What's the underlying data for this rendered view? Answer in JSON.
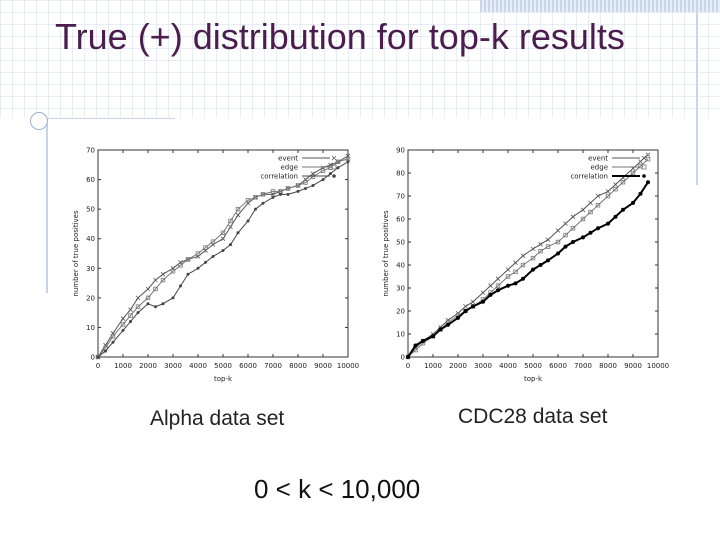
{
  "slide": {
    "title": "True (+) distribution for top-k results",
    "alpha_caption": "Alpha data set",
    "cdc_caption": "CDC28 data set",
    "range_caption": "0 < k < 10,000"
  },
  "chart_data": [
    {
      "id": "alpha",
      "type": "line",
      "xlabel": "top-k",
      "ylabel": "number of true positives",
      "xlim": [
        0,
        10000
      ],
      "ylim": [
        0,
        70
      ],
      "xticks": [
        "0",
        "1000",
        "2000",
        "3000",
        "4000",
        "5000",
        "6000",
        "7000",
        "8000",
        "9000",
        "10000"
      ],
      "yticks": [
        "0",
        "10",
        "20",
        "30",
        "40",
        "50",
        "60",
        "70"
      ],
      "legend_position": "top-right",
      "x": [
        0,
        300,
        600,
        1000,
        1300,
        1600,
        2000,
        2300,
        2600,
        3000,
        3300,
        3600,
        4000,
        4300,
        4600,
        5000,
        5300,
        5600,
        6000,
        6300,
        6600,
        7000,
        7300,
        7600,
        8000,
        8300,
        8600,
        9000,
        9300,
        9600,
        10000
      ],
      "series": [
        {
          "name": "event",
          "color": "#555555",
          "marker": "x",
          "values": [
            0,
            4,
            8,
            13,
            16,
            20,
            23,
            26,
            28,
            30,
            32,
            33,
            34,
            36,
            38,
            40,
            44,
            48,
            52,
            54,
            55,
            55,
            56,
            57,
            58,
            60,
            62,
            64,
            65,
            66,
            68
          ]
        },
        {
          "name": "edge",
          "color": "#777777",
          "marker": "square",
          "values": [
            0,
            3,
            7,
            11,
            14,
            17,
            20,
            23,
            26,
            29,
            31,
            33,
            35,
            37,
            39,
            42,
            46,
            50,
            53,
            54,
            55,
            56,
            56,
            57,
            58,
            59,
            61,
            63,
            64,
            66,
            67
          ]
        },
        {
          "name": "correlation",
          "color": "#444444",
          "marker": "dot",
          "values": [
            0,
            2,
            5,
            9,
            12,
            15,
            18,
            17,
            18,
            20,
            24,
            28,
            30,
            32,
            34,
            36,
            38,
            42,
            46,
            50,
            52,
            54,
            55,
            55,
            56,
            57,
            58,
            60,
            62,
            64,
            66
          ]
        }
      ]
    },
    {
      "id": "cdc28",
      "type": "line",
      "xlabel": "top-k",
      "ylabel": "number of true positives",
      "xlim": [
        0,
        10000
      ],
      "ylim": [
        0,
        90
      ],
      "xticks": [
        "0",
        "1000",
        "2000",
        "3000",
        "4000",
        "5000",
        "6000",
        "7000",
        "8000",
        "9000",
        "10000"
      ],
      "yticks": [
        "0",
        "10",
        "20",
        "30",
        "40",
        "50",
        "60",
        "70",
        "80",
        "90"
      ],
      "legend_position": "top-right",
      "x": [
        0,
        300,
        600,
        1000,
        1300,
        1600,
        2000,
        2300,
        2600,
        3000,
        3300,
        3600,
        4000,
        4300,
        4600,
        5000,
        5300,
        5600,
        6000,
        6300,
        6600,
        7000,
        7300,
        7600,
        8000,
        8300,
        8600,
        9000,
        9300,
        9600
      ],
      "series": [
        {
          "name": "event",
          "color": "#555555",
          "marker": "x",
          "values": [
            0,
            4,
            7,
            10,
            13,
            16,
            19,
            22,
            24,
            28,
            31,
            34,
            38,
            41,
            44,
            47,
            49,
            51,
            55,
            58,
            61,
            64,
            67,
            70,
            72,
            75,
            78,
            82,
            85,
            88
          ]
        },
        {
          "name": "edge",
          "color": "#777777",
          "marker": "square",
          "values": [
            0,
            3,
            6,
            9,
            12,
            15,
            18,
            20,
            22,
            25,
            28,
            31,
            35,
            37,
            40,
            43,
            46,
            48,
            50,
            53,
            56,
            60,
            63,
            66,
            70,
            73,
            76,
            80,
            83,
            86
          ]
        },
        {
          "name": "correlation",
          "color": "#000000",
          "marker": "dot",
          "values": [
            0,
            5,
            7,
            9,
            12,
            14,
            17,
            20,
            22,
            24,
            27,
            29,
            31,
            32,
            34,
            38,
            40,
            42,
            45,
            48,
            50,
            52,
            54,
            56,
            58,
            61,
            64,
            67,
            71,
            76
          ]
        }
      ]
    }
  ]
}
